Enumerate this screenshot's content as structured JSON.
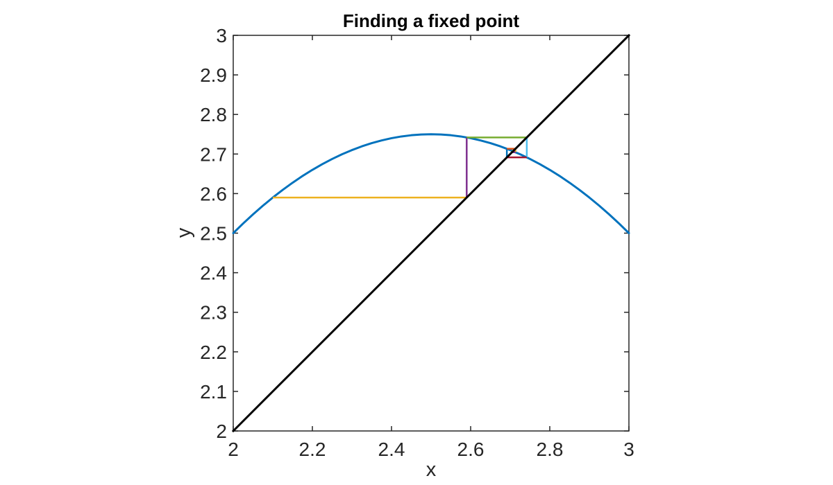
{
  "figure": {
    "background": "#ffffff"
  },
  "chart_data": {
    "type": "line",
    "title": "Finding a fixed point",
    "xlabel": "x",
    "ylabel": "y",
    "xlim": [
      2,
      3
    ],
    "ylim": [
      2,
      3
    ],
    "grid": false,
    "legend": "none",
    "axis_color": "#262626",
    "tick_length": 7,
    "xtick_values": [
      2,
      2.2,
      2.4,
      2.6,
      2.8,
      3
    ],
    "xtick_labels": [
      "2",
      "2.2",
      "2.4",
      "2.6",
      "2.8",
      "3"
    ],
    "ytick_values": [
      2,
      2.1,
      2.2,
      2.3,
      2.4,
      2.5,
      2.6,
      2.7,
      2.8,
      2.9,
      3
    ],
    "ytick_labels": [
      "2",
      "2.1",
      "2.2",
      "2.3",
      "2.4",
      "2.5",
      "2.6",
      "2.7",
      "2.8",
      "2.9",
      "3"
    ],
    "series": [
      {
        "name": "function-curve",
        "description": "g(x) = 2.75 - (x - 2.5)^2",
        "color": "#0072BD",
        "line_width": 3,
        "points": [
          [
            2.0,
            2.5
          ],
          [
            2.025,
            2.5244
          ],
          [
            2.05,
            2.5475
          ],
          [
            2.075,
            2.5694
          ],
          [
            2.1,
            2.59
          ],
          [
            2.125,
            2.6094
          ],
          [
            2.15,
            2.6275
          ],
          [
            2.175,
            2.6444
          ],
          [
            2.2,
            2.66
          ],
          [
            2.225,
            2.6744
          ],
          [
            2.25,
            2.6875
          ],
          [
            2.275,
            2.6994
          ],
          [
            2.3,
            2.71
          ],
          [
            2.325,
            2.7194
          ],
          [
            2.35,
            2.7275
          ],
          [
            2.375,
            2.7344
          ],
          [
            2.4,
            2.74
          ],
          [
            2.425,
            2.7444
          ],
          [
            2.45,
            2.7475
          ],
          [
            2.475,
            2.7494
          ],
          [
            2.5,
            2.75
          ],
          [
            2.525,
            2.7494
          ],
          [
            2.55,
            2.7475
          ],
          [
            2.575,
            2.7444
          ],
          [
            2.6,
            2.74
          ],
          [
            2.625,
            2.7344
          ],
          [
            2.65,
            2.7275
          ],
          [
            2.675,
            2.7194
          ],
          [
            2.7,
            2.71
          ],
          [
            2.725,
            2.6994
          ],
          [
            2.75,
            2.6875
          ],
          [
            2.775,
            2.6744
          ],
          [
            2.8,
            2.66
          ],
          [
            2.825,
            2.6444
          ],
          [
            2.85,
            2.6275
          ],
          [
            2.875,
            2.6094
          ],
          [
            2.9,
            2.59
          ],
          [
            2.925,
            2.5694
          ],
          [
            2.95,
            2.5475
          ],
          [
            2.975,
            2.5244
          ],
          [
            3.0,
            2.5
          ]
        ]
      },
      {
        "name": "identity-line",
        "description": "y = x",
        "color": "#000000",
        "line_width": 3,
        "points": [
          [
            2,
            2
          ],
          [
            3,
            3
          ]
        ]
      }
    ],
    "cobweb_segments": [
      {
        "color": "#EDB120",
        "from": [
          2.1,
          2.59
        ],
        "to": [
          2.59,
          2.59
        ]
      },
      {
        "color": "#7E2F8E",
        "from": [
          2.59,
          2.59
        ],
        "to": [
          2.59,
          2.7419
        ]
      },
      {
        "color": "#77AC30",
        "from": [
          2.59,
          2.7419
        ],
        "to": [
          2.7419,
          2.7419
        ]
      },
      {
        "color": "#4DBEEE",
        "from": [
          2.7419,
          2.7419
        ],
        "to": [
          2.7419,
          2.6915
        ]
      },
      {
        "color": "#A2142F",
        "from": [
          2.7419,
          2.6915
        ],
        "to": [
          2.6915,
          2.6915
        ]
      },
      {
        "color": "#0072BD",
        "from": [
          2.6915,
          2.6915
        ],
        "to": [
          2.6915,
          2.7133
        ]
      },
      {
        "color": "#D95319",
        "from": [
          2.6915,
          2.7133
        ],
        "to": [
          2.7133,
          2.7133
        ]
      },
      {
        "color": "#EDB120",
        "from": [
          2.7133,
          2.7133
        ],
        "to": [
          2.7133,
          2.7045
        ]
      },
      {
        "color": "#7E2F8E",
        "from": [
          2.7133,
          2.7045
        ],
        "to": [
          2.7045,
          2.7045
        ]
      },
      {
        "color": "#77AC30",
        "from": [
          2.7045,
          2.7045
        ],
        "to": [
          2.7045,
          2.7082
        ]
      },
      {
        "color": "#4DBEEE",
        "from": [
          2.7045,
          2.7082
        ],
        "to": [
          2.7082,
          2.7082
        ]
      }
    ],
    "cobweb_line_width": 2.5
  }
}
